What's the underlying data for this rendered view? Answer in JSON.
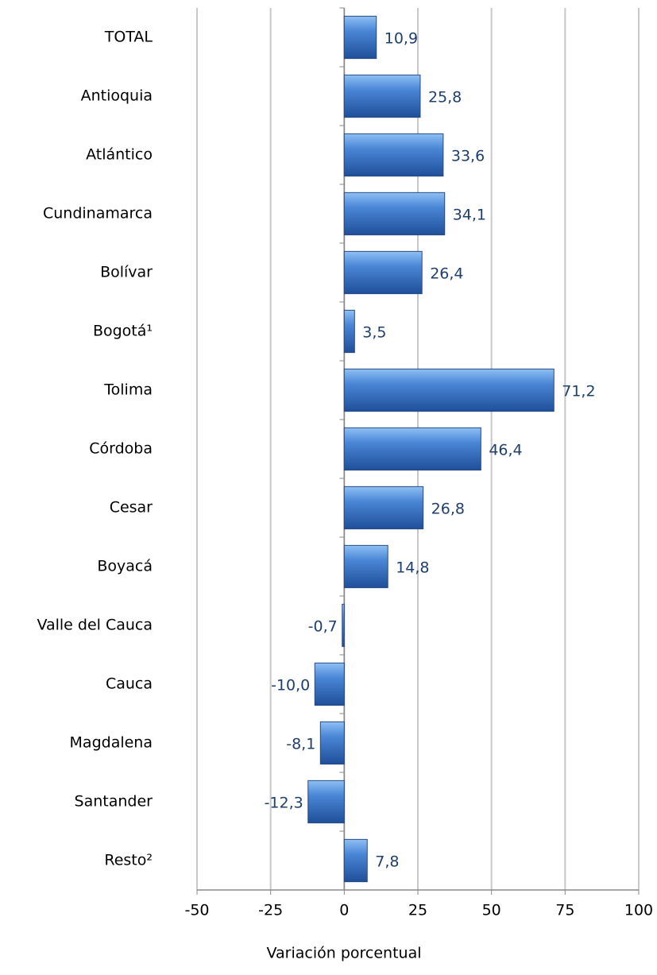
{
  "chart_data": {
    "type": "bar",
    "orientation": "horizontal",
    "categories": [
      "TOTAL",
      "Antioquia",
      "Atlántico",
      "Cundinamarca",
      "Bolívar",
      "Bogotá¹",
      "Tolima",
      "Córdoba",
      "Cesar",
      "Boyacá",
      "Valle del Cauca",
      "Cauca",
      "Magdalena",
      "Santander",
      "Resto²"
    ],
    "values": [
      10.9,
      25.8,
      33.6,
      34.1,
      26.4,
      3.5,
      71.2,
      46.4,
      26.8,
      14.8,
      -0.7,
      -10.0,
      -8.1,
      -12.3,
      7.8
    ],
    "value_labels": [
      "10,9",
      "25,8",
      "33,6",
      "34,1",
      "26,4",
      "3,5",
      "71,2",
      "46,4",
      "26,8",
      "14,8",
      "-0,7",
      "-10,0",
      "-8,1",
      "-12,3",
      "7,8"
    ],
    "color": "#3a70c0",
    "x_label": "Variación porcentual",
    "xlim": [
      -50,
      100
    ],
    "xticks": [
      -50,
      -25,
      0,
      25,
      50,
      75,
      100
    ],
    "grid": true
  }
}
